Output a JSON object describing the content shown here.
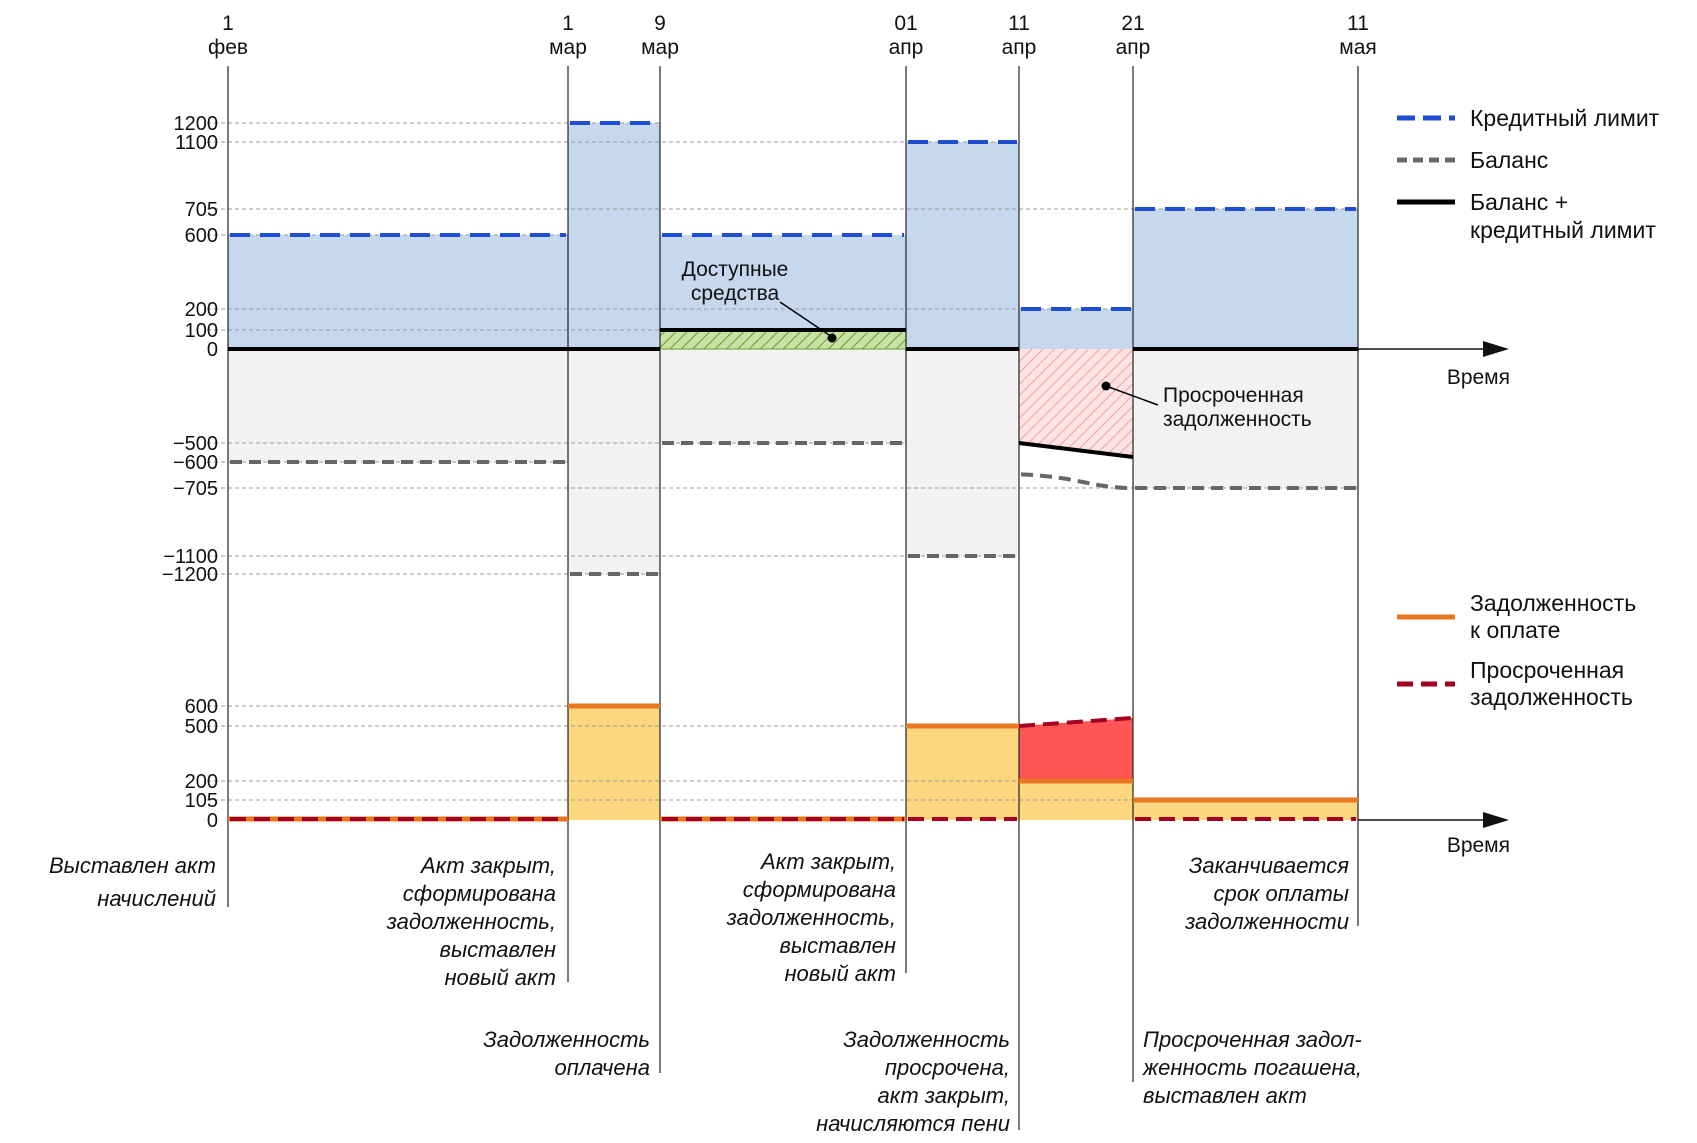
{
  "colors": {
    "credit_limit": "#1f4fd0",
    "balance": "#666666",
    "balance_plus_limit": "#000000",
    "available_fill": "#c6d8ee",
    "negative_fill": "#f2f2f2",
    "available_funds_hatch": "#8bc34a",
    "overdue_hatch": "#f4a0a0",
    "debt_due": "#e87722",
    "debt_due_fill": "#fdd77f",
    "overdue_debt": "#a50021",
    "overdue_fill": "#ff5555"
  },
  "chart_data": [
    {
      "type": "line",
      "ylabel": "",
      "axis_label": "Время",
      "dates": [
        {
          "day": "1",
          "month": "фев"
        },
        {
          "day": "1",
          "month": "мар"
        },
        {
          "day": "9",
          "month": "мар"
        },
        {
          "day": "01",
          "month": "апр"
        },
        {
          "day": "11",
          "month": "апр"
        },
        {
          "day": "21",
          "month": "апр"
        },
        {
          "day": "11",
          "month": "мая"
        }
      ],
      "yticks": [
        "1200",
        "1100",
        "705",
        "600",
        "200",
        "100",
        "0",
        "−500",
        "−600",
        "−705",
        "−1100",
        "−1200"
      ],
      "legend": {
        "credit_limit": "Кредитный лимит",
        "balance": "Баланс",
        "balance_plus_limit_1": "Баланс +",
        "balance_plus_limit_2": "кредитный лимит"
      },
      "series": [
        {
          "key": "credit_limit",
          "segments": [
            [
              0,
              1,
              600
            ],
            [
              1,
              2,
              1200
            ],
            [
              2,
              3,
              600
            ],
            [
              3,
              4,
              1100
            ],
            [
              4,
              5,
              200
            ],
            [
              5,
              6,
              705
            ]
          ]
        },
        {
          "key": "balance",
          "segments": [
            [
              0,
              1,
              -600
            ],
            [
              1,
              2,
              -1200
            ],
            [
              2,
              3,
              -500
            ],
            [
              3,
              4,
              -1100
            ],
            [
              4,
              5,
              -705
            ],
            [
              5,
              6,
              -705
            ]
          ]
        },
        {
          "key": "balance_plus_limit",
          "segments": [
            [
              0,
              1,
              0
            ],
            [
              1,
              2,
              0
            ],
            [
              2,
              3,
              100
            ],
            [
              3,
              4,
              0
            ],
            [
              4,
              5,
              -500
            ],
            [
              5,
              6,
              0
            ]
          ]
        }
      ],
      "labels": {
        "available_1": "Доступные",
        "available_2": "средства",
        "overdue_1": "Просроченная",
        "overdue_2": "задолженность"
      }
    },
    {
      "type": "line",
      "ylabel": "",
      "axis_label": "Время",
      "yticks": [
        "600",
        "500",
        "200",
        "105",
        "0"
      ],
      "legend": {
        "debt_due_1": "Задолженность",
        "debt_due_2": "к оплате",
        "overdue_1": "Просроченная",
        "overdue_2": "задолженность"
      },
      "series": [
        {
          "key": "debt_due",
          "segments": [
            [
              0,
              1,
              0
            ],
            [
              1,
              2,
              600
            ],
            [
              2,
              3,
              0
            ],
            [
              3,
              4,
              500
            ],
            [
              4,
              5,
              200
            ],
            [
              5,
              6,
              105
            ]
          ]
        },
        {
          "key": "overdue_debt",
          "segments": [
            [
              0,
              1,
              0
            ],
            [
              2,
              3,
              0
            ],
            [
              3,
              4,
              0
            ],
            [
              4,
              5,
              500
            ],
            [
              5,
              6,
              0
            ]
          ]
        }
      ]
    }
  ],
  "annotations": {
    "a1": [
      "Выставлен акт",
      "начислений"
    ],
    "a2": [
      "Акт закрыт,",
      "сформирована",
      "задолженность,",
      "выставлен",
      "новый акт"
    ],
    "a3": [
      "Задолженность",
      "оплачена"
    ],
    "a4": [
      "Акт закрыт,",
      "сформирована",
      "задолженность,",
      "выставлен",
      "новый акт"
    ],
    "a5": [
      "Задолженность",
      "просрочена,",
      "акт закрыт,",
      "начисляются пени"
    ],
    "a6": [
      "Заканчивается",
      "срок оплаты",
      "задолженности"
    ],
    "a7": [
      "Просроченная задол-",
      "женность погашена,",
      "выставлен акт"
    ]
  }
}
